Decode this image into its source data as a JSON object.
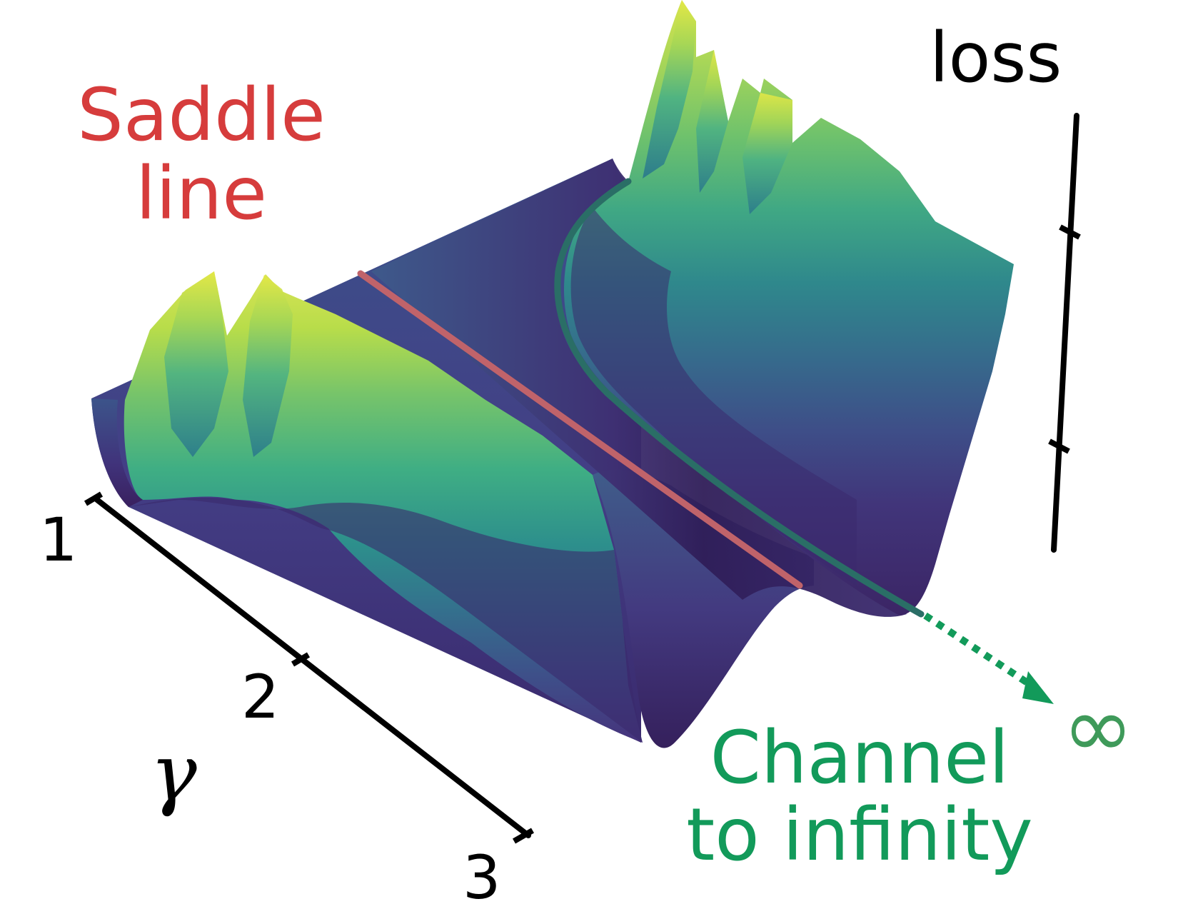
{
  "figure": {
    "annotations": {
      "saddle_line_1": "Saddle",
      "saddle_line_2": "line",
      "channel_1": "Channel",
      "channel_2": "to infinity",
      "infinity_symbol": "∞"
    },
    "axes": {
      "gamma": {
        "label": "γ",
        "ticks": [
          "1",
          "2",
          "3"
        ]
      },
      "loss": {
        "label": "loss"
      }
    },
    "colors": {
      "saddle": "#d63c3c",
      "saddle_line": "#c0636a",
      "channel": "#129a5a",
      "channel_line": "#2a6e66",
      "axis": "#000000",
      "viridis": [
        "#440154",
        "#472d7b",
        "#3b528b",
        "#2c728e",
        "#21918c",
        "#28ae80",
        "#5ec962",
        "#addc30",
        "#fde725"
      ]
    }
  }
}
